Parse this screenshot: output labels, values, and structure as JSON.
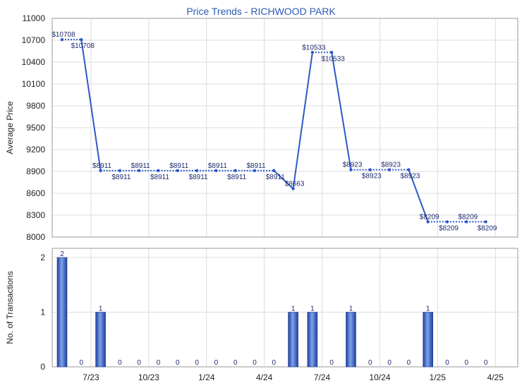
{
  "chart_data": [
    {
      "type": "line",
      "title": "Price Trends - RICHWOOD PARK",
      "ylabel": "Average Price",
      "ylim": [
        8000,
        11000
      ],
      "yticks": [
        8000,
        8300,
        8600,
        8900,
        9200,
        9500,
        9800,
        10100,
        10400,
        10700,
        11000
      ],
      "grid": true,
      "series": [
        {
          "color": "#2d59c8",
          "points": [
            {
              "x": 0,
              "y": 10708,
              "label": "$10708"
            },
            {
              "x": 1,
              "y": 10708,
              "label": "$10708"
            },
            {
              "x": 2,
              "y": 8911,
              "label": "$8911"
            },
            {
              "x": 3,
              "y": 8911,
              "label": "$8911"
            },
            {
              "x": 4,
              "y": 8911,
              "label": "$8911"
            },
            {
              "x": 5,
              "y": 8911,
              "label": "$8911"
            },
            {
              "x": 6,
              "y": 8911,
              "label": "$8911"
            },
            {
              "x": 7,
              "y": 8911,
              "label": "$8911"
            },
            {
              "x": 8,
              "y": 8911,
              "label": "$8911"
            },
            {
              "x": 9,
              "y": 8911,
              "label": "$8911"
            },
            {
              "x": 10,
              "y": 8911,
              "label": "$8911"
            },
            {
              "x": 11,
              "y": 8911,
              "label": "$8911"
            },
            {
              "x": 12,
              "y": 8663,
              "label": "$8663"
            },
            {
              "x": 13,
              "y": 10533,
              "label": "$10533"
            },
            {
              "x": 14,
              "y": 10533,
              "label": "$10533"
            },
            {
              "x": 15,
              "y": 8923,
              "label": "$8923"
            },
            {
              "x": 16,
              "y": 8923,
              "label": "$8923"
            },
            {
              "x": 17,
              "y": 8923,
              "label": "$8923"
            },
            {
              "x": 18,
              "y": 8923,
              "label": "$8923"
            },
            {
              "x": 19,
              "y": 8209,
              "label": "$8209"
            },
            {
              "x": 20,
              "y": 8209,
              "label": "$8209"
            },
            {
              "x": 21,
              "y": 8209,
              "label": "$8209"
            },
            {
              "x": 22,
              "y": 8209,
              "label": "$8209"
            }
          ]
        }
      ]
    },
    {
      "type": "bar",
      "ylabel": "No. of Transactions",
      "ylim": [
        0,
        2
      ],
      "yticks": [
        0,
        1,
        2
      ],
      "grid": true,
      "color": "#2d59c8",
      "values": [
        2,
        0,
        1,
        0,
        0,
        0,
        0,
        0,
        0,
        0,
        0,
        0,
        1,
        1,
        0,
        1,
        0,
        0,
        0,
        1,
        0,
        0,
        0
      ],
      "xticks": [
        {
          "x": 2,
          "label": "7/23"
        },
        {
          "x": 5,
          "label": "10/23"
        },
        {
          "x": 8,
          "label": "1/24"
        },
        {
          "x": 11,
          "label": "4/24"
        },
        {
          "x": 14,
          "label": "7/24"
        },
        {
          "x": 17,
          "label": "10/24"
        },
        {
          "x": 20,
          "label": "1/25"
        },
        {
          "x": 23,
          "label": "4/25"
        }
      ]
    }
  ]
}
